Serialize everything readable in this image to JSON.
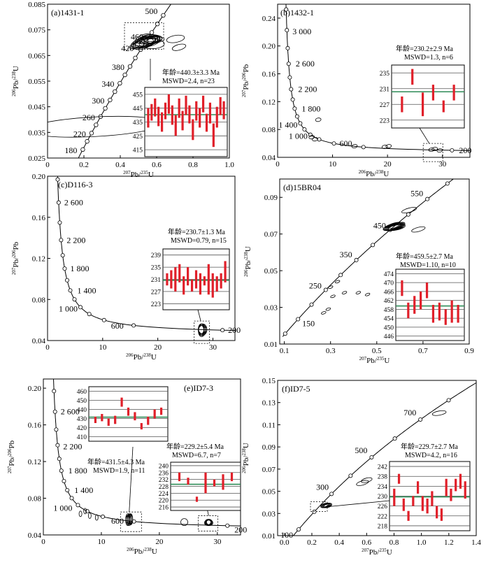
{
  "chart_data": [
    {
      "type": "scatter",
      "panel_label": "(a)1431-1",
      "xlim": [
        0,
        1.0
      ],
      "ylim": [
        0.025,
        0.085
      ],
      "xticks": [
        0,
        0.2,
        0.4,
        0.6,
        0.8,
        1.0
      ],
      "xticklabels": [
        "0",
        "0.2",
        "0.4",
        "0.6",
        "0.8",
        "1.0"
      ],
      "yticks": [
        0.025,
        0.035,
        0.045,
        0.055,
        0.065,
        0.075,
        0.085
      ],
      "yticklabels": [
        "0.025",
        "0.035",
        "0.045",
        "0.055",
        "0.065",
        "0.075",
        "0.085"
      ],
      "xlabel": [
        "207",
        "Pb/",
        "235",
        "U"
      ],
      "ylabel": [
        "206",
        "Pb/",
        "238",
        "U"
      ],
      "concordia_ages": [
        "180",
        "220",
        "260",
        "300",
        "340",
        "380",
        "420",
        "460",
        "500"
      ],
      "inset": {
        "age_text": "年龄=440.3±3.3 Ma",
        "mswd_text": "MSWD=2.4, n=23",
        "yticks": [
          415,
          425,
          435,
          445,
          455
        ],
        "yticklabels": [
          "415",
          "425",
          "435",
          "445",
          "455"
        ],
        "mean": 440.3,
        "bars": [
          [
            431,
            445
          ],
          [
            436,
            448
          ],
          [
            439,
            452
          ],
          [
            432,
            446
          ],
          [
            428,
            442
          ],
          [
            437,
            449
          ],
          [
            441,
            455
          ],
          [
            433,
            447
          ],
          [
            425,
            440
          ],
          [
            438,
            452
          ],
          [
            429,
            443
          ],
          [
            440,
            454
          ],
          [
            434,
            447
          ],
          [
            422,
            437
          ],
          [
            436,
            450
          ],
          [
            431,
            445
          ],
          [
            442,
            454
          ],
          [
            428,
            441
          ],
          [
            434,
            449
          ],
          [
            417,
            434
          ],
          [
            431,
            446
          ],
          [
            440,
            453
          ],
          [
            437,
            450
          ]
        ]
      }
    },
    {
      "type": "scatter",
      "panel_label": "(b)1432-1",
      "xlim": [
        0,
        35
      ],
      "ylim": [
        0.04,
        0.26
      ],
      "xticks": [
        0,
        10,
        20,
        30
      ],
      "xticklabels": [
        "0",
        "10",
        "20",
        "30"
      ],
      "yticks": [
        0.04,
        0.08,
        0.12,
        0.16,
        0.2,
        0.24
      ],
      "yticklabels": [
        "0.04",
        "0.08",
        "0.12",
        "0.16",
        "0.20",
        "0.24"
      ],
      "xlabel": [
        "206",
        "Pb/",
        "238",
        "U"
      ],
      "ylabel": [
        "207",
        "Pb/",
        "206",
        "Pb"
      ],
      "concordia_ages": [
        "3 000",
        "2 600",
        "2 200",
        "1 800",
        "1 400",
        "1 000",
        "600",
        "200"
      ],
      "inset": {
        "age_text": "年龄=230.2±2.9 Ma",
        "mswd_text": "MSWD=1.3, n=6",
        "yticks": [
          223,
          227,
          231,
          235
        ],
        "yticklabels": [
          "223",
          "227",
          "231",
          "235"
        ],
        "mean": 230.2,
        "bars": [
          [
            225,
            229
          ],
          [
            232,
            236
          ],
          [
            224,
            230
          ],
          [
            228,
            232
          ],
          [
            225,
            228
          ],
          [
            228,
            232
          ]
        ]
      }
    },
    {
      "type": "scatter",
      "panel_label": "(c)D116-3",
      "xlim": [
        0,
        34
      ],
      "ylim": [
        0.04,
        0.2
      ],
      "xticks": [
        0,
        10,
        20,
        30
      ],
      "xticklabels": [
        "0",
        "10",
        "20",
        "30"
      ],
      "yticks": [
        0.04,
        0.08,
        0.12,
        0.16,
        0.2
      ],
      "yticklabels": [
        "0.04",
        "0.08",
        "0.12",
        "0.16",
        "0.20"
      ],
      "xlabel": [
        "206",
        "Pb/",
        "238",
        "U"
      ],
      "ylabel": [
        "207",
        "Pb/",
        "206",
        "Pb"
      ],
      "concordia_ages": [
        "2 600",
        "2 200",
        "1 800",
        "1 400",
        "1 000",
        "600",
        "200"
      ],
      "inset": {
        "age_text": "年龄=230.7±1.3 Ma",
        "mswd_text": "MSWD=0.79, n=15",
        "yticks": [
          223,
          227,
          231,
          235,
          239
        ],
        "yticklabels": [
          "223",
          "227",
          "231",
          "235",
          "239"
        ],
        "mean": 230.7,
        "bars": [
          [
            229,
            233
          ],
          [
            228,
            234
          ],
          [
            227,
            235
          ],
          [
            230,
            236
          ],
          [
            226,
            232
          ],
          [
            229,
            235
          ],
          [
            227,
            231
          ],
          [
            228,
            234
          ],
          [
            226,
            233
          ],
          [
            229,
            232
          ],
          [
            226,
            236
          ],
          [
            225,
            233
          ],
          [
            227,
            232
          ],
          [
            228,
            233
          ],
          [
            230,
            237
          ]
        ]
      }
    },
    {
      "type": "scatter",
      "panel_label": "(d)15BR04",
      "xlim": [
        0.08,
        0.9
      ],
      "ylim": [
        0.01,
        0.1
      ],
      "xticks": [
        0.1,
        0.3,
        0.5,
        0.7,
        0.9
      ],
      "xticklabels": [
        "0.1",
        "0.3",
        "0.5",
        "0.7",
        "0.9"
      ],
      "yticks": [
        0.01,
        0.03,
        0.05,
        0.07,
        0.09
      ],
      "yticklabels": [
        "0.01",
        "0.03",
        "0.05",
        "0.07",
        "0.09"
      ],
      "xlabel": [
        "207",
        "Pb/",
        "235",
        "U"
      ],
      "ylabel": [
        "206",
        "Pb/",
        "238",
        "U"
      ],
      "concordia_ages": [
        "150",
        "250",
        "350",
        "450",
        "550"
      ],
      "inset": {
        "age_text": "年龄=459.5±2.7 Ma",
        "mswd_text": "MSWD=1.10, n=10",
        "yticks": [
          446,
          450,
          454,
          458,
          462,
          466,
          470,
          474
        ],
        "yticklabels": [
          "446",
          "450",
          "454",
          "458",
          "462",
          "466",
          "470",
          "474"
        ],
        "mean": 459.5,
        "bars": [
          [
            464,
            471
          ],
          [
            454,
            461
          ],
          [
            456,
            464
          ],
          [
            458,
            466
          ],
          [
            463,
            470
          ],
          [
            452,
            460
          ],
          [
            453,
            461
          ],
          [
            451,
            458
          ],
          [
            452,
            462
          ],
          [
            452,
            460
          ]
        ]
      }
    },
    {
      "type": "scatter",
      "panel_label": "(e)ID7-3",
      "xlim": [
        0,
        34
      ],
      "ylim": [
        0.04,
        0.21
      ],
      "xticks": [
        0,
        10,
        20,
        30
      ],
      "xticklabels": [
        "0",
        "10",
        "20",
        "30"
      ],
      "yticks": [
        0.04,
        0.08,
        0.12,
        0.16,
        0.2
      ],
      "yticklabels": [
        "0.04",
        "0.08",
        "0.12",
        "0.16",
        "0.20"
      ],
      "xlabel": [
        "206",
        "Pb/",
        "238",
        "U"
      ],
      "ylabel": [
        "207",
        "Pb/",
        "206",
        "Pb"
      ],
      "concordia_ages": [
        "2 600",
        "2 200",
        "1 800",
        "1 400",
        "1 000",
        "600",
        "200"
      ],
      "inset": {
        "age_text": "年龄=431.5±4.3 Ma",
        "mswd_text": "MSWD=1.9, n=11",
        "yticks": [
          410,
          420,
          430,
          440,
          450,
          460
        ],
        "yticklabels": [
          "410",
          "420",
          "430",
          "440",
          "450",
          "460"
        ],
        "mean": 431.5,
        "bars": [
          [
            425,
            432
          ],
          [
            427,
            435
          ],
          [
            422,
            430
          ],
          [
            424,
            433
          ],
          [
            443,
            453
          ],
          [
            433,
            442
          ],
          [
            428,
            437
          ],
          [
            418,
            425
          ],
          [
            423,
            432
          ],
          [
            430,
            440
          ],
          [
            434,
            442
          ]
        ]
      },
      "inset2": {
        "age_text": "年龄=229.2±5.4 Ma",
        "mswd_text": "MSWD=6.7, n=7",
        "yticks": [
          216,
          220,
          224,
          228,
          232,
          236,
          240
        ],
        "yticklabels": [
          "216",
          "220",
          "224",
          "228",
          "232",
          "236",
          "240"
        ],
        "mean": 229.2,
        "bars": [
          [
            231,
            236
          ],
          [
            229,
            233
          ],
          [
            219,
            222
          ],
          [
            224,
            236
          ],
          [
            228,
            232
          ],
          [
            226,
            235
          ],
          [
            231,
            236
          ]
        ]
      }
    },
    {
      "type": "scatter",
      "panel_label": "(f)ID7-5",
      "xlim": [
        -0.05,
        1.4
      ],
      "ylim": [
        0.01,
        0.15
      ],
      "xticks": [
        0.0,
        0.2,
        0.4,
        0.6,
        0.8,
        1.0,
        1.2,
        1.4
      ],
      "xticklabels": [
        "0.0",
        "0.2",
        "0.4",
        "0.6",
        "0.8",
        "1.0",
        "1.2",
        "1.4"
      ],
      "yticks": [
        0.01,
        0.03,
        0.05,
        0.07,
        0.09,
        0.11,
        0.13,
        0.15
      ],
      "yticklabels": [
        "0.01",
        "0.03",
        "0.05",
        "0.07",
        "0.09",
        "0.11",
        "0.13",
        "0.15"
      ],
      "xlabel": [
        "207",
        "Pb/",
        "235",
        "U"
      ],
      "ylabel": [
        "206",
        "Pb/",
        "238",
        "U"
      ],
      "concordia_ages": [
        "100",
        "300",
        "500",
        "700"
      ],
      "inset": {
        "age_text": "年龄=229.7±2.7 Ma",
        "mswd_text": "MSWD=4.2, n=16",
        "yticks": [
          218,
          222,
          226,
          230,
          234,
          238,
          242
        ],
        "yticklabels": [
          "218",
          "222",
          "226",
          "230",
          "234",
          "238",
          "242"
        ],
        "mean": 229.7,
        "bars": [
          [
            226,
            233
          ],
          [
            235,
            239
          ],
          [
            224,
            229
          ],
          [
            220,
            224
          ],
          [
            226,
            230
          ],
          [
            231,
            236
          ],
          [
            224,
            230
          ],
          [
            223,
            229
          ],
          [
            226,
            232
          ],
          [
            221,
            226
          ],
          [
            220,
            225
          ],
          [
            230,
            237
          ],
          [
            228,
            233
          ],
          [
            232,
            237
          ],
          [
            233,
            239
          ],
          [
            229,
            236
          ]
        ]
      }
    }
  ]
}
